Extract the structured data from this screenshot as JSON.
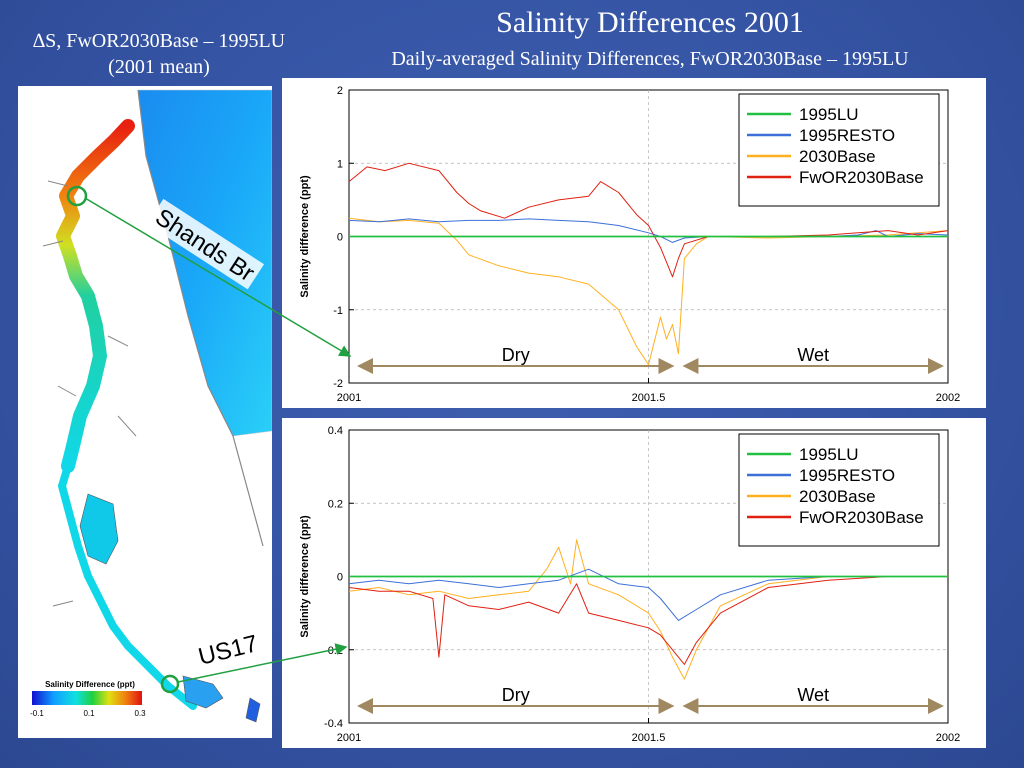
{
  "slide": {
    "title": "Salinity Differences 2001",
    "subtitle": "Daily-averaged Salinity Differences, FwOR2030Base – 1995LU"
  },
  "map": {
    "caption_line1": "∆S, FwOR2030Base – 1995LU",
    "caption_line2": "(2001 mean)",
    "colorbar_title": "Salinity Difference (ppt)",
    "colorbar_ticks": [
      "-0.1",
      "0.1",
      "0.3"
    ],
    "callouts": [
      "Shands Br",
      "US17"
    ]
  },
  "colors": {
    "1995LU": "#22c040",
    "1995RESTO": "#3c70d8",
    "2030Base": "#ffb020",
    "FwOR2030Base": "#e02010",
    "period_arrow": "#a08860",
    "callout_line": "#20a040"
  },
  "chart_data": [
    {
      "type": "line",
      "location": "Shands Br",
      "xlabel": "",
      "ylabel": "Salinity difference (ppt)",
      "xlim": [
        2001,
        2002
      ],
      "ylim": [
        -2,
        2
      ],
      "xticks": [
        "2001",
        "2001.5",
        "2002"
      ],
      "xtick_values": [
        2001,
        2001.5,
        2002
      ],
      "yticks": [
        "2",
        "1",
        "0",
        "-1",
        "-2"
      ],
      "ytick_values": [
        2,
        1,
        0,
        -1,
        -2
      ],
      "legend_position": "top-right",
      "periods": [
        {
          "label": "Dry",
          "start": 2001.0,
          "end": 2001.55
        },
        {
          "label": "Wet",
          "start": 2001.55,
          "end": 2002.0
        }
      ],
      "series": [
        {
          "name": "1995LU",
          "x": [
            2001.0,
            2002.0
          ],
          "values": [
            0,
            0
          ]
        },
        {
          "name": "1995RESTO",
          "x": [
            2001.0,
            2001.05,
            2001.1,
            2001.15,
            2001.2,
            2001.25,
            2001.3,
            2001.35,
            2001.4,
            2001.45,
            2001.5,
            2001.52,
            2001.54,
            2001.56,
            2001.6,
            2001.7,
            2001.8,
            2001.85,
            2001.88,
            2001.9,
            2001.95,
            2002.0
          ],
          "values": [
            0.22,
            0.2,
            0.24,
            0.2,
            0.22,
            0.22,
            0.24,
            0.22,
            0.2,
            0.15,
            0.05,
            0.0,
            -0.08,
            -0.02,
            0.0,
            0.0,
            0.0,
            0.02,
            0.08,
            0.0,
            0.04,
            0.02
          ]
        },
        {
          "name": "2030Base",
          "x": [
            2001.0,
            2001.05,
            2001.1,
            2001.15,
            2001.18,
            2001.2,
            2001.25,
            2001.3,
            2001.35,
            2001.4,
            2001.45,
            2001.48,
            2001.5,
            2001.52,
            2001.53,
            2001.54,
            2001.55,
            2001.56,
            2001.58,
            2001.6,
            2001.7,
            2001.8,
            2001.9,
            2001.95,
            2002.0
          ],
          "values": [
            0.25,
            0.2,
            0.22,
            0.18,
            -0.05,
            -0.25,
            -0.4,
            -0.5,
            -0.55,
            -0.65,
            -1.0,
            -1.5,
            -1.75,
            -1.1,
            -1.4,
            -1.2,
            -1.6,
            -0.3,
            -0.1,
            0.0,
            -0.02,
            0.0,
            0.02,
            0.05,
            0.08
          ]
        },
        {
          "name": "FwOR2030Base",
          "x": [
            2001.0,
            2001.03,
            2001.06,
            2001.1,
            2001.15,
            2001.18,
            2001.2,
            2001.22,
            2001.26,
            2001.3,
            2001.35,
            2001.4,
            2001.42,
            2001.45,
            2001.48,
            2001.5,
            2001.52,
            2001.54,
            2001.55,
            2001.56,
            2001.6,
            2001.7,
            2001.8,
            2001.85,
            2001.9,
            2001.95,
            2002.0
          ],
          "values": [
            0.75,
            0.95,
            0.9,
            1.0,
            0.9,
            0.6,
            0.45,
            0.35,
            0.25,
            0.4,
            0.5,
            0.55,
            0.75,
            0.6,
            0.3,
            0.15,
            -0.15,
            -0.55,
            -0.3,
            -0.1,
            0.0,
            0.0,
            0.02,
            0.05,
            0.08,
            0.02,
            0.08
          ]
        }
      ]
    },
    {
      "type": "line",
      "location": "US17",
      "xlabel": "",
      "ylabel": "Salinity difference (ppt)",
      "xlim": [
        2001,
        2002
      ],
      "ylim": [
        -0.4,
        0.4
      ],
      "xticks": [
        "2001",
        "2001.5",
        "2002"
      ],
      "xtick_values": [
        2001,
        2001.5,
        2002
      ],
      "yticks": [
        "0.4",
        "0.2",
        "0",
        "-0.2",
        "-0.4"
      ],
      "ytick_values": [
        0.4,
        0.2,
        0,
        -0.2,
        -0.4
      ],
      "legend_position": "top-right",
      "periods": [
        {
          "label": "Dry",
          "start": 2001.0,
          "end": 2001.55
        },
        {
          "label": "Wet",
          "start": 2001.55,
          "end": 2002.0
        }
      ],
      "series": [
        {
          "name": "1995LU",
          "x": [
            2001.0,
            2002.0
          ],
          "values": [
            0,
            0
          ]
        },
        {
          "name": "1995RESTO",
          "x": [
            2001.0,
            2001.05,
            2001.1,
            2001.15,
            2001.2,
            2001.25,
            2001.3,
            2001.35,
            2001.4,
            2001.45,
            2001.5,
            2001.52,
            2001.55,
            2001.58,
            2001.62,
            2001.7,
            2001.8,
            2001.9,
            2002.0
          ],
          "values": [
            -0.02,
            -0.01,
            -0.02,
            -0.01,
            -0.02,
            -0.03,
            -0.02,
            -0.01,
            0.02,
            -0.02,
            -0.03,
            -0.06,
            -0.12,
            -0.09,
            -0.05,
            -0.01,
            0.0,
            0.0,
            0.0
          ]
        },
        {
          "name": "2030Base",
          "x": [
            2001.0,
            2001.05,
            2001.1,
            2001.15,
            2001.2,
            2001.25,
            2001.3,
            2001.33,
            2001.35,
            2001.37,
            2001.38,
            2001.4,
            2001.45,
            2001.5,
            2001.52,
            2001.54,
            2001.56,
            2001.58,
            2001.62,
            2001.7,
            2001.8,
            2001.9,
            2002.0
          ],
          "values": [
            -0.04,
            -0.03,
            -0.05,
            -0.04,
            -0.06,
            -0.05,
            -0.04,
            0.02,
            0.08,
            -0.02,
            0.1,
            -0.02,
            -0.05,
            -0.1,
            -0.15,
            -0.22,
            -0.28,
            -0.2,
            -0.08,
            -0.02,
            0.0,
            0.0,
            0.0
          ]
        },
        {
          "name": "FwOR2030Base",
          "x": [
            2001.0,
            2001.05,
            2001.1,
            2001.14,
            2001.15,
            2001.16,
            2001.2,
            2001.25,
            2001.3,
            2001.35,
            2001.38,
            2001.4,
            2001.45,
            2001.5,
            2001.52,
            2001.54,
            2001.56,
            2001.58,
            2001.62,
            2001.7,
            2001.8,
            2001.9,
            2002.0
          ],
          "values": [
            -0.03,
            -0.04,
            -0.04,
            -0.06,
            -0.22,
            -0.05,
            -0.08,
            -0.09,
            -0.07,
            -0.1,
            -0.02,
            -0.1,
            -0.12,
            -0.14,
            -0.16,
            -0.2,
            -0.24,
            -0.18,
            -0.1,
            -0.03,
            -0.01,
            0.0,
            0.0
          ]
        }
      ]
    }
  ]
}
